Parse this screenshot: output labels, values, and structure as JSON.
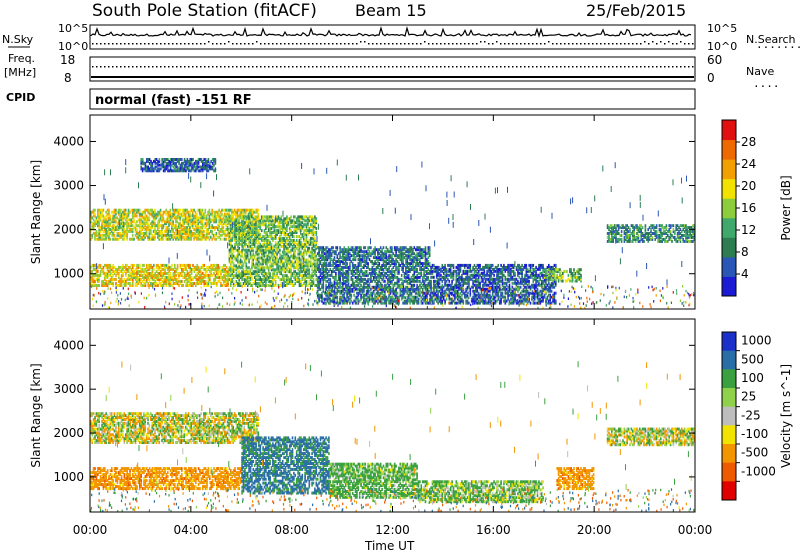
{
  "header": {
    "station": "South Pole Station (fitACF)",
    "beam": "Beam 15",
    "date": "25/Feb/2015"
  },
  "noise_panel": {
    "left_label": "N.Sky",
    "right_label": "N.Search",
    "right_dots": ".......",
    "top_tick": "10^5",
    "bottom_tick": "10^0"
  },
  "freq_panel": {
    "left_label_1": "Freq.",
    "left_label_2": "[MHz]",
    "left_ticks": [
      "18",
      "8"
    ],
    "right_label": "Nave",
    "right_dots": "....",
    "right_ticks": [
      "60",
      "0"
    ]
  },
  "cpid": {
    "label": "CPID",
    "text": "normal (fast) -151 RF"
  },
  "colors": {
    "power_scale": [
      "#1b1bd6",
      "#2a56b5",
      "#2e7d52",
      "#3fa86a",
      "#8dcc3c",
      "#f2e200",
      "#f2a000",
      "#ee6a00",
      "#e01010"
    ],
    "velocity_scale": [
      "#1b2fc9",
      "#2a6ea8",
      "#3aa040",
      "#8fd14a",
      "#bdbdbd",
      "#f2e200",
      "#f29500",
      "#ee5a00",
      "#e00000"
    ]
  },
  "chart_data": [
    {
      "type": "heatmap",
      "name": "power",
      "ylabel": "Slant Range [km]",
      "yticks": [
        "1000",
        "2000",
        "3000",
        "4000"
      ],
      "y_values": [
        1000,
        2000,
        3000,
        4000
      ],
      "ylim": [
        200,
        4600
      ],
      "xlim": [
        0,
        24
      ],
      "colorbar_label": "Power [dB]",
      "colorbar_ticks": [
        "4",
        "8",
        "12",
        "16",
        "20",
        "24",
        "28"
      ],
      "colorbar_values": [
        4,
        8,
        12,
        16,
        20,
        24,
        28
      ],
      "colorbar_range": [
        0,
        32
      ],
      "bands": [
        {
          "t0": 0.0,
          "t1": 6.7,
          "r0": 1750,
          "r1": 2450,
          "v": 18
        },
        {
          "t0": 0.0,
          "t1": 5.5,
          "r0": 700,
          "r1": 1200,
          "v": 20
        },
        {
          "t0": 5.5,
          "t1": 9.0,
          "r0": 700,
          "r1": 2300,
          "v": 14
        },
        {
          "t0": 9.0,
          "t1": 13.5,
          "r0": 300,
          "r1": 1600,
          "v": 8
        },
        {
          "t0": 13.5,
          "t1": 18.5,
          "r0": 300,
          "r1": 1200,
          "v": 6
        },
        {
          "t0": 18.0,
          "t1": 19.5,
          "r0": 800,
          "r1": 1100,
          "v": 14
        },
        {
          "t0": 20.5,
          "t1": 24.0,
          "r0": 1700,
          "r1": 2100,
          "v": 10
        },
        {
          "t0": 2.0,
          "t1": 5.0,
          "r0": 3300,
          "r1": 3600,
          "v": 6
        }
      ]
    },
    {
      "type": "heatmap",
      "name": "velocity",
      "ylabel": "Slant Range [km]",
      "yticks": [
        "1000",
        "2000",
        "3000",
        "4000"
      ],
      "y_values": [
        1000,
        2000,
        3000,
        4000
      ],
      "ylim": [
        200,
        4600
      ],
      "xlim": [
        0,
        24
      ],
      "colorbar_label": "Velocity [m s^-1]",
      "colorbar_ticks": [
        "1000",
        "500",
        "100",
        "25",
        "-25",
        "-100",
        "-500",
        "-1000"
      ],
      "bands": [
        {
          "t0": 0.0,
          "t1": 6.7,
          "r0": 1750,
          "r1": 2450,
          "v": 0
        },
        {
          "t0": 0.0,
          "t1": 6.0,
          "r0": 700,
          "r1": 1200,
          "v": -300
        },
        {
          "t0": 6.0,
          "t1": 9.5,
          "r0": 600,
          "r1": 1900,
          "v": 600
        },
        {
          "t0": 9.5,
          "t1": 13.0,
          "r0": 500,
          "r1": 1300,
          "v": 200
        },
        {
          "t0": 13.0,
          "t1": 18.0,
          "r0": 400,
          "r1": 900,
          "v": 150
        },
        {
          "t0": 18.5,
          "t1": 20.0,
          "r0": 700,
          "r1": 1200,
          "v": -300
        },
        {
          "t0": 20.5,
          "t1": 24.0,
          "r0": 1700,
          "r1": 2100,
          "v": 0
        }
      ]
    }
  ],
  "x_axis": {
    "label": "Time UT",
    "ticks": [
      "00:00",
      "04:00",
      "08:00",
      "12:00",
      "16:00",
      "20:00",
      "00:00"
    ],
    "values": [
      0,
      4,
      8,
      12,
      16,
      20,
      24
    ]
  }
}
